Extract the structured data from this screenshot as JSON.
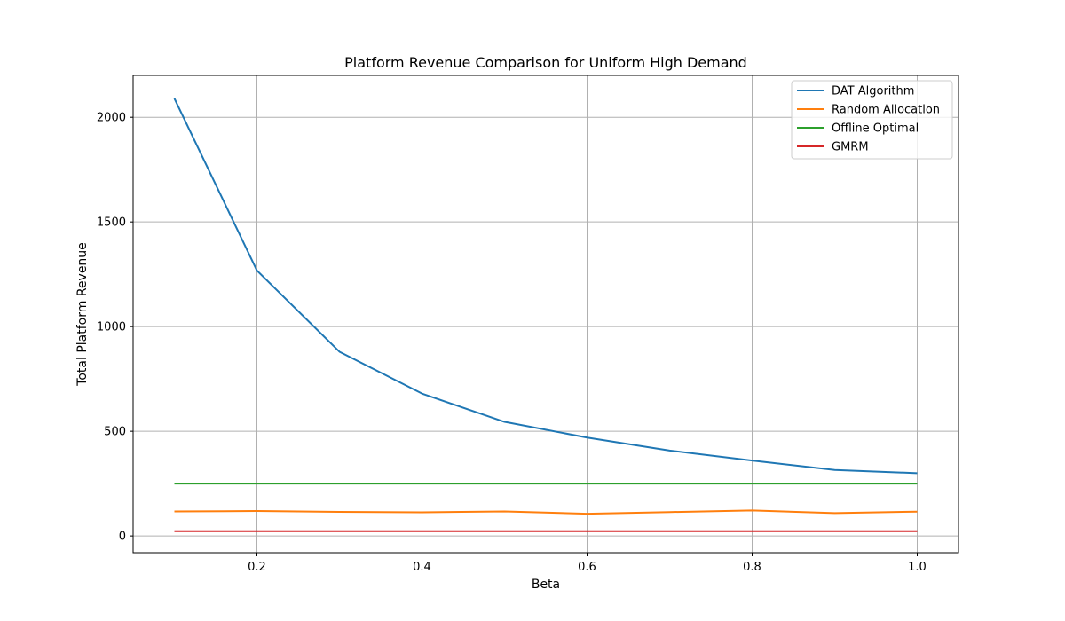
{
  "chart_data": {
    "type": "line",
    "title": "Platform Revenue Comparison for Uniform High Demand",
    "xlabel": "Beta",
    "ylabel": "Total Platform Revenue",
    "xlim": [
      0.05,
      1.05
    ],
    "ylim": [
      -80,
      2200
    ],
    "x_ticks": [
      0.2,
      0.4,
      0.6,
      0.8,
      1.0
    ],
    "x_tick_labels": [
      "0.2",
      "0.4",
      "0.6",
      "0.8",
      "1.0"
    ],
    "y_ticks": [
      0,
      500,
      1000,
      1500,
      2000
    ],
    "y_tick_labels": [
      "0",
      "500",
      "1000",
      "1500",
      "2000"
    ],
    "grid": true,
    "legend_position": "top-right",
    "x": [
      0.1,
      0.2,
      0.3,
      0.4,
      0.5,
      0.6,
      0.7,
      0.8,
      0.9,
      1.0
    ],
    "series": [
      {
        "name": "DAT Algorithm",
        "color": "#1f77b4",
        "values": [
          2090,
          1268,
          880,
          680,
          545,
          470,
          408,
          360,
          315,
          300
        ]
      },
      {
        "name": "Random Allocation",
        "color": "#ff7f0e",
        "values": [
          117,
          119,
          115,
          113,
          117,
          106,
          114,
          122,
          109,
          116
        ]
      },
      {
        "name": "Offline Optimal",
        "color": "#2ca02c",
        "values": [
          250,
          250,
          250,
          250,
          250,
          250,
          250,
          250,
          250,
          250
        ]
      },
      {
        "name": "GMRM",
        "color": "#d62728",
        "values": [
          23,
          23,
          23,
          23,
          23,
          23,
          23,
          23,
          23,
          23
        ]
      }
    ]
  }
}
